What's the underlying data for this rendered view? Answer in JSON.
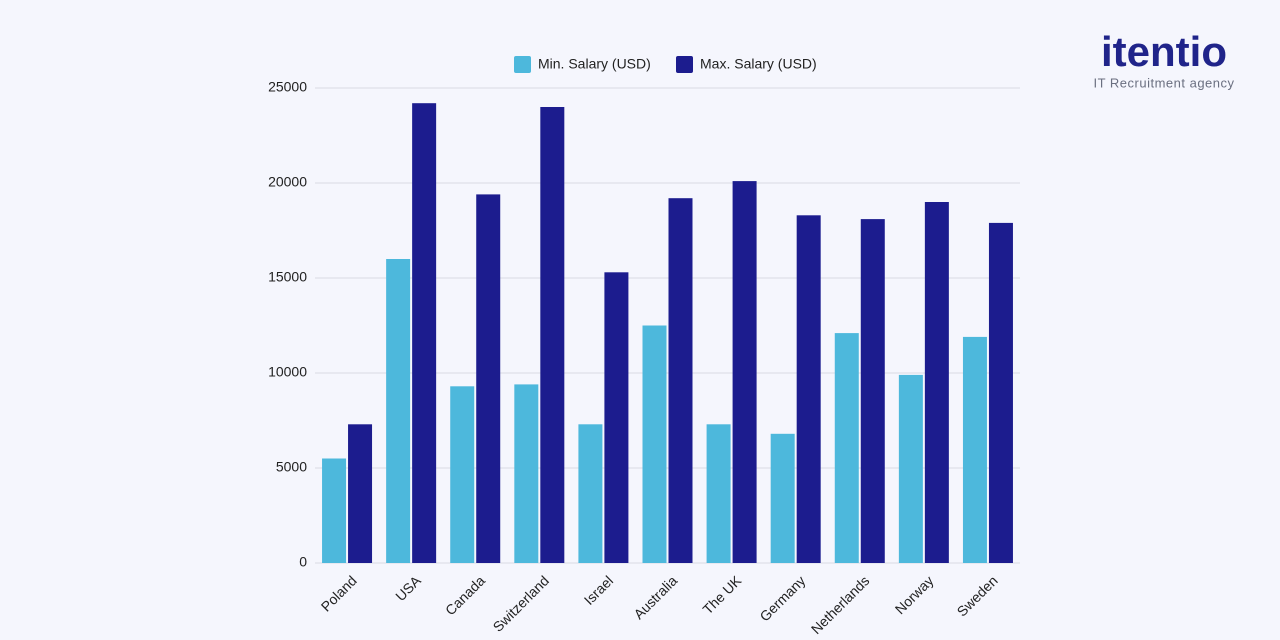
{
  "chart_data": {
    "type": "bar",
    "categories": [
      "Poland",
      "USA",
      "Canada",
      "Switzerland",
      "Israel",
      "Australia",
      "The UK",
      "Germany",
      "Netherlands",
      "Norway",
      "Sweden"
    ],
    "series": [
      {
        "name": "Min. Salary (USD)",
        "color": "#4db8dc",
        "values": [
          5500,
          16000,
          9300,
          9400,
          7300,
          12500,
          7300,
          6800,
          12100,
          9900,
          11900
        ]
      },
      {
        "name": "Max. Salary (USD)",
        "color": "#1c1c8e",
        "values": [
          7300,
          24200,
          19400,
          24000,
          15300,
          19200,
          20100,
          18300,
          18100,
          19000,
          17900
        ]
      }
    ],
    "ylim": [
      0,
      25000
    ],
    "yticks": [
      0,
      5000,
      10000,
      15000,
      20000,
      25000
    ],
    "grid": true
  },
  "logo": {
    "name": "itentio",
    "tagline": "IT Recruitment agency"
  }
}
